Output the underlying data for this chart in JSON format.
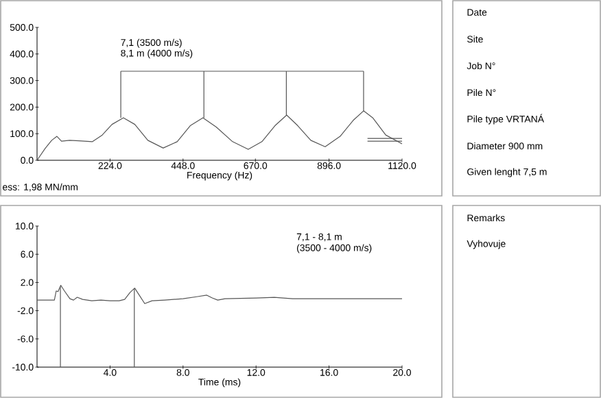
{
  "chart_data": [
    {
      "type": "line",
      "xlabel": "Frequency (Hz)",
      "xlim": [
        0,
        1120
      ],
      "xticks": [
        {
          "value": 224,
          "label": "224.0"
        },
        {
          "value": 448,
          "label": "448.0"
        },
        {
          "value": 670,
          "label": "670.0"
        },
        {
          "value": 896,
          "label": "896.0"
        },
        {
          "value": 1120,
          "label": "1120.0"
        }
      ],
      "ylim": [
        0,
        500
      ],
      "yticks": [
        {
          "value": 0,
          "label": "0.0"
        },
        {
          "value": 100,
          "label": "100.0"
        },
        {
          "value": 200,
          "label": "200.0"
        },
        {
          "value": 300,
          "label": "300.0"
        },
        {
          "value": 400,
          "label": "400.0"
        },
        {
          "value": 500,
          "label": "500.0"
        }
      ],
      "marker": "none",
      "line_style": "solid",
      "annotations": [
        "7,1 (3500 m/s)",
        "8,1 m (4000 m/s)",
        "ess: 1,98 MN/mm"
      ],
      "series": [
        {
          "color": "#555555",
          "x": [
            0,
            25,
            45,
            61,
            75,
            100,
            130,
            170,
            200,
            230,
            265,
            300,
            340,
            387,
            430,
            470,
            509,
            550,
            600,
            648,
            690,
            730,
            766,
            800,
            840,
            884,
            930,
            970,
            1002,
            1030,
            1070,
            1120
          ],
          "values": [
            0,
            45,
            75,
            90,
            72,
            75,
            73,
            70,
            95,
            135,
            160,
            135,
            75,
            46,
            70,
            130,
            160,
            125,
            70,
            41,
            70,
            130,
            170,
            130,
            75,
            51,
            90,
            150,
            186,
            160,
            95,
            62
          ]
        },
        {
          "color": "#555555",
          "x": [
            257,
            1002
          ],
          "values": [
            335,
            335
          ]
        },
        {
          "color": "#555555",
          "x": [
            257,
            257
          ],
          "values": [
            160,
            335
          ]
        },
        {
          "color": "#555555",
          "x": [
            512,
            512
          ],
          "values": [
            160,
            335
          ]
        },
        {
          "color": "#555555",
          "x": [
            765,
            765
          ],
          "values": [
            170,
            335
          ]
        },
        {
          "color": "#555555",
          "x": [
            1002,
            1002
          ],
          "values": [
            186,
            335
          ]
        },
        {
          "color": "#555555",
          "x": [
            1014,
            1120
          ],
          "values": [
            82,
            82
          ]
        },
        {
          "color": "#555555",
          "x": [
            1014,
            1120
          ],
          "values": [
            72,
            72
          ]
        }
      ]
    },
    {
      "type": "line",
      "xlabel": "Time (ms)",
      "xlim": [
        0,
        20
      ],
      "xticks": [
        {
          "value": 4,
          "label": "4.0"
        },
        {
          "value": 8,
          "label": "8.0"
        },
        {
          "value": 12,
          "label": "12.0"
        },
        {
          "value": 16,
          "label": "16.0"
        },
        {
          "value": 20,
          "label": "20.0"
        }
      ],
      "ylim": [
        -10,
        10
      ],
      "yticks": [
        {
          "value": -10,
          "label": "-10.0"
        },
        {
          "value": -6,
          "label": "-6.0"
        },
        {
          "value": -2,
          "label": "-2.0"
        },
        {
          "value": 2,
          "label": "2.0"
        },
        {
          "value": 6,
          "label": "6.0"
        },
        {
          "value": 10,
          "label": "10.0"
        }
      ],
      "marker": "none",
      "line_style": "solid",
      "annotations": [
        "7,1 - 8,1 m",
        "(3500 - 4000 m/s)"
      ],
      "series": [
        {
          "color": "#555555",
          "x": [
            0,
            0.95,
            1.05,
            1.15,
            1.3,
            1.5,
            1.8,
            2.0,
            2.2,
            2.5,
            3,
            3.5,
            4,
            4.5,
            4.8,
            5.1,
            5.35,
            5.6,
            5.9,
            6.3,
            7,
            8,
            8.8,
            9.3,
            9.6,
            9.9,
            10.3,
            12,
            13,
            14,
            16,
            20
          ],
          "values": [
            -0.5,
            -0.5,
            0.8,
            0.7,
            1.6,
            0.8,
            -0.3,
            -0.5,
            -0.1,
            -0.4,
            -0.6,
            -0.5,
            -0.6,
            -0.6,
            -0.4,
            0.6,
            1.2,
            0.2,
            -1.0,
            -0.6,
            -0.5,
            -0.3,
            0,
            0.2,
            -0.2,
            -0.5,
            -0.3,
            -0.2,
            -0.1,
            -0.3,
            -0.3,
            -0.3
          ]
        },
        {
          "color": "#555555",
          "x": [
            1.28,
            1.28
          ],
          "values": [
            -10,
            1.4
          ]
        },
        {
          "color": "#555555",
          "x": [
            5.33,
            5.33
          ],
          "values": [
            -10,
            1.1
          ]
        }
      ]
    },
    {
      "type": "other",
      "annotations": [
        "Date",
        "Site",
        "Job N°",
        "Pile N°",
        "Pile type VRTANÁ",
        "Diameter 900 mm",
        "Given lenght 7,5 m"
      ]
    },
    {
      "type": "other",
      "annotations": [
        "Remarks",
        "Vyhovuje"
      ]
    }
  ]
}
